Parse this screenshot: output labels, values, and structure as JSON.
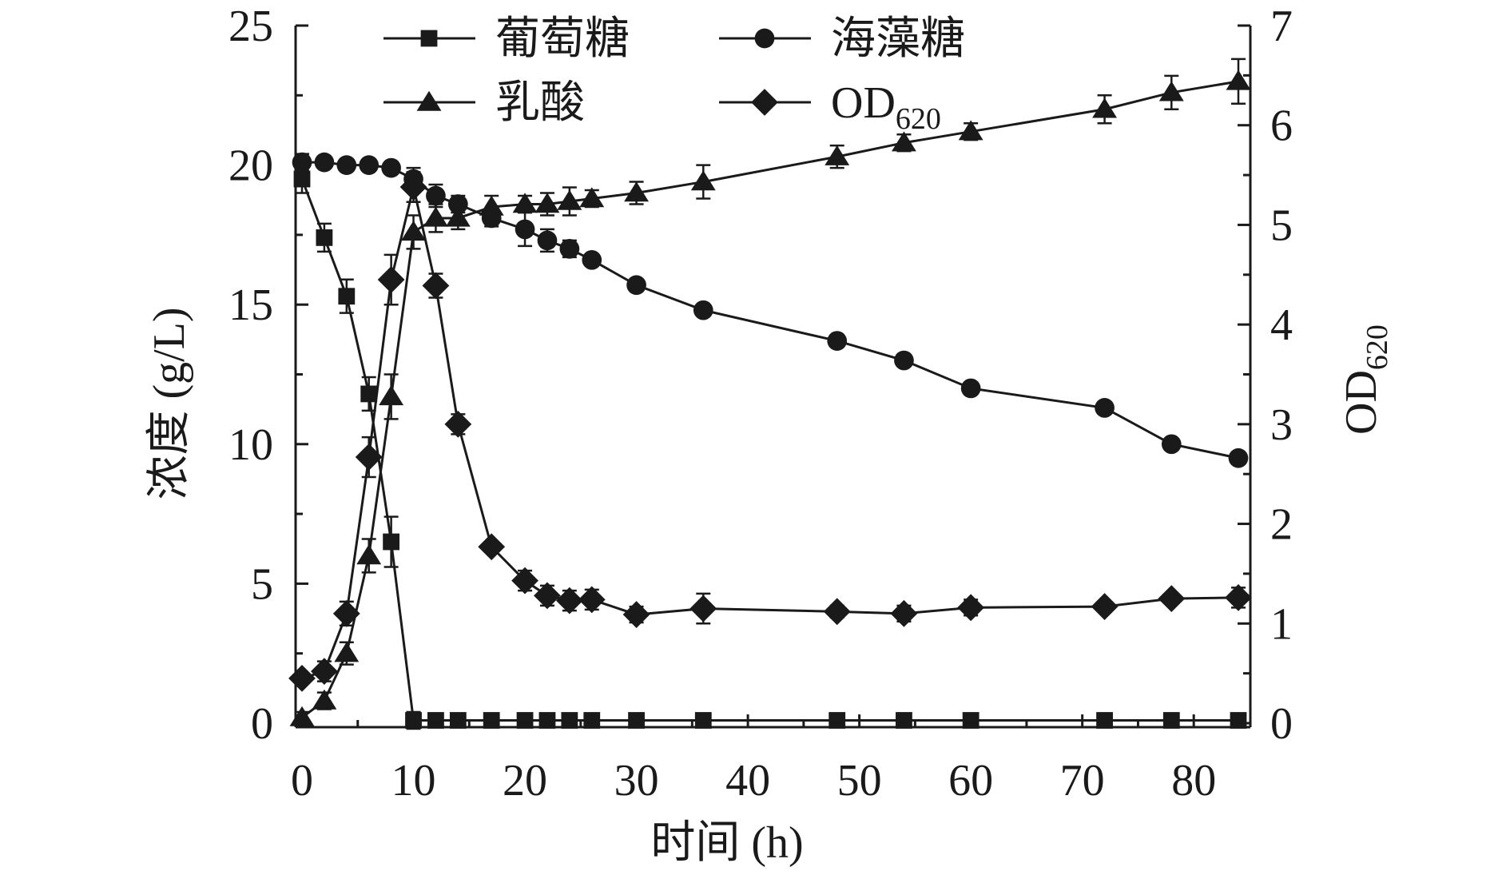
{
  "chart_data": {
    "type": "line",
    "xlabel": "时间 (h)",
    "ylabel": "浓度 (g/L)",
    "y2label": {
      "main": "OD",
      "sub": "620"
    },
    "xlim": [
      0,
      84
    ],
    "ylim": [
      0,
      25
    ],
    "y2lim": [
      0,
      7
    ],
    "xticks": [
      0,
      10,
      20,
      30,
      40,
      50,
      60,
      70,
      80
    ],
    "yticks": [
      0,
      5,
      10,
      15,
      20,
      25
    ],
    "y2ticks": [
      0,
      1,
      2,
      3,
      4,
      5,
      6,
      7
    ],
    "legend_position": "top",
    "colors": {
      "line": "#1a1a1a",
      "marker": "#1a1a1a"
    },
    "series": [
      {
        "name": "葡萄糖",
        "marker": "square",
        "axis": "left",
        "x": [
          0,
          2,
          4,
          6,
          8,
          10,
          12,
          14,
          17,
          20,
          22,
          24,
          26,
          30,
          36,
          48,
          54,
          60,
          72,
          78,
          84
        ],
        "y": [
          19.5,
          17.4,
          15.3,
          11.8,
          6.5,
          0.1,
          0.1,
          0.1,
          0.1,
          0.1,
          0.1,
          0.1,
          0.1,
          0.1,
          0.1,
          0.1,
          0.1,
          0.1,
          0.1,
          0.1,
          0.1
        ],
        "err": [
          0.5,
          0.5,
          0.6,
          0.6,
          0.9,
          0.3,
          0,
          0,
          0,
          0,
          0,
          0,
          0,
          0,
          0,
          0,
          0,
          0,
          0,
          0,
          0
        ]
      },
      {
        "name": "海藻糖",
        "marker": "circle",
        "axis": "left",
        "x": [
          0,
          2,
          4,
          6,
          8,
          10,
          12,
          14,
          17,
          20,
          22,
          24,
          26,
          30,
          36,
          48,
          54,
          60,
          72,
          78,
          84
        ],
        "y": [
          20.1,
          20.1,
          20.0,
          20.0,
          19.9,
          19.5,
          18.9,
          18.6,
          18.1,
          17.7,
          17.3,
          17.0,
          16.6,
          15.7,
          14.8,
          13.7,
          13.0,
          12.0,
          11.3,
          10.0,
          9.5
        ],
        "err": [
          0.3,
          0.2,
          0.1,
          0.1,
          0.2,
          0.4,
          0.4,
          0.3,
          0.3,
          0.6,
          0.4,
          0.3,
          0.2,
          0.2,
          0.2,
          0.2,
          0.2,
          0.2,
          0.2,
          0.2,
          0.2
        ]
      },
      {
        "name": "乳酸",
        "marker": "triangle",
        "axis": "left",
        "x": [
          0,
          2,
          4,
          6,
          8,
          10,
          12,
          14,
          17,
          20,
          22,
          24,
          26,
          30,
          36,
          48,
          54,
          60,
          72,
          78,
          84
        ],
        "y": [
          0.2,
          0.8,
          2.5,
          6.0,
          11.7,
          17.6,
          18.1,
          18.1,
          18.5,
          18.6,
          18.6,
          18.7,
          18.8,
          19.0,
          19.4,
          20.3,
          20.8,
          21.2,
          22.0,
          22.6,
          23.0
        ],
        "err": [
          0.2,
          0.3,
          0.4,
          0.6,
          0.8,
          0.6,
          0.5,
          0.4,
          0.4,
          0.3,
          0.4,
          0.5,
          0.3,
          0.4,
          0.6,
          0.4,
          0.3,
          0.3,
          0.5,
          0.6,
          0.8
        ]
      },
      {
        "name": "OD",
        "name_sub": "620",
        "marker": "diamond",
        "axis": "right",
        "x": [
          0,
          2,
          4,
          6,
          8,
          10,
          12,
          14,
          17,
          20,
          22,
          24,
          26,
          30,
          36,
          48,
          54,
          60,
          72,
          78,
          84
        ],
        "y": [
          0.45,
          0.52,
          1.1,
          2.67,
          4.45,
          5.38,
          4.39,
          3.0,
          1.77,
          1.43,
          1.28,
          1.23,
          1.24,
          1.09,
          1.15,
          1.12,
          1.1,
          1.16,
          1.17,
          1.25,
          1.26
        ],
        "err": [
          0.05,
          0.1,
          0.12,
          0.2,
          0.25,
          0.15,
          0.12,
          0.1,
          0.05,
          0.1,
          0.1,
          0.1,
          0.1,
          0.08,
          0.15,
          0.06,
          0.08,
          0.08,
          0.05,
          0.05,
          0.1
        ]
      }
    ]
  }
}
